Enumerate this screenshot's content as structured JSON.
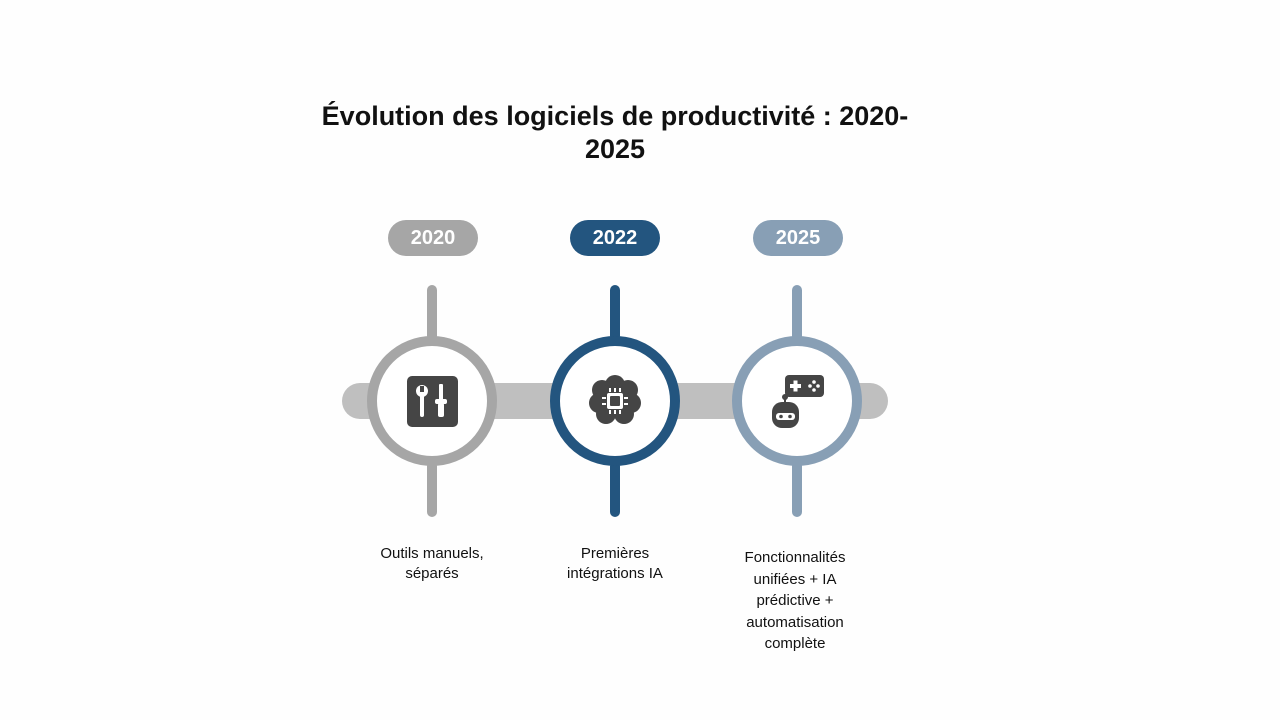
{
  "title": {
    "line1": "Évolution des logiciels de productivité : 2020-",
    "line2": "2025"
  },
  "milestones": [
    {
      "year": "2020",
      "color": "#a6a6a6",
      "icon": "tools-icon",
      "description": [
        "Outils manuels,",
        "séparés"
      ]
    },
    {
      "year": "2022",
      "color": "#23557f",
      "icon": "ai-chip-brain-icon",
      "description": [
        "Premières",
        "intégrations IA"
      ]
    },
    {
      "year": "2025",
      "color": "#889fb5",
      "icon": "robot-gamepad-icon",
      "description": [
        "Fonctionnalités",
        "unifiées + IA",
        "prédictive +",
        "automatisation",
        "complète"
      ]
    }
  ],
  "connector_color": "#bfbfbf",
  "icon_color": "#454545"
}
